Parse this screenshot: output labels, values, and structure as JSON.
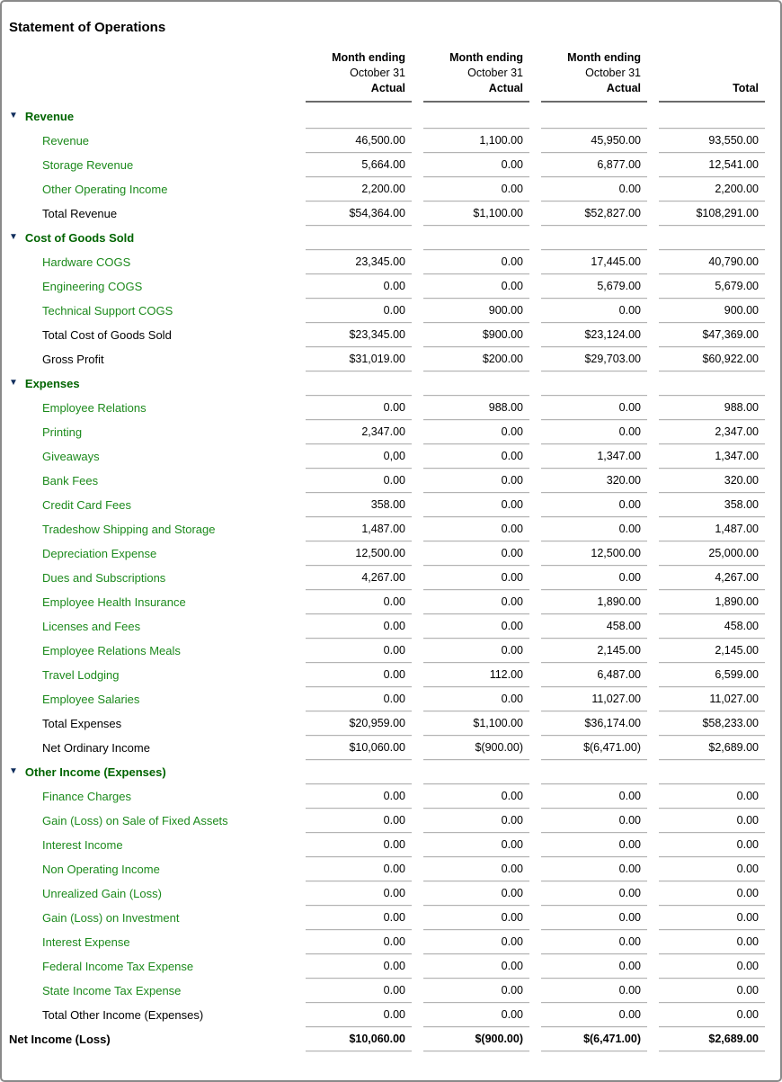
{
  "title": "Statement of Operations",
  "icons": {
    "collapse": "▼"
  },
  "colors": {
    "section_header_green": "#006400",
    "account_link_green": "#1c8a1c",
    "collapse_triangle_navy": "#0f2d5c",
    "cell_underline_gray": "#b3b3b3",
    "header_underline_gray": "#6b6b6b",
    "panel_border_gray": "#8a8a8a"
  },
  "columns": [
    {
      "period": "Month ending",
      "date": "October 31",
      "basis": "Actual"
    },
    {
      "period": "Month ending",
      "date": "October 31",
      "basis": "Actual"
    },
    {
      "period": "Month ending",
      "date": "October 31",
      "basis": "Actual"
    },
    {
      "period": "",
      "date": "",
      "basis": "Total"
    }
  ],
  "rows": [
    {
      "type": "section",
      "label": "Revenue"
    },
    {
      "type": "item",
      "label": "Revenue",
      "values": [
        "46,500.00",
        "1,100.00",
        "45,950.00",
        "93,550.00"
      ]
    },
    {
      "type": "item",
      "label": "Storage Revenue",
      "values": [
        "5,664.00",
        "0.00",
        "6,877.00",
        "12,541.00"
      ]
    },
    {
      "type": "item",
      "label": "Other Operating Income",
      "values": [
        "2,200.00",
        "0.00",
        "0.00",
        "2,200.00"
      ]
    },
    {
      "type": "total",
      "label": "Total Revenue",
      "values": [
        "$54,364.00",
        "$1,100.00",
        "$52,827.00",
        "$108,291.00"
      ]
    },
    {
      "type": "section",
      "label": "Cost of Goods Sold"
    },
    {
      "type": "item",
      "label": "Hardware COGS",
      "values": [
        "23,345.00",
        "0.00",
        "17,445.00",
        "40,790.00"
      ]
    },
    {
      "type": "item",
      "label": "Engineering COGS",
      "values": [
        "0.00",
        "0.00",
        "5,679.00",
        "5,679.00"
      ]
    },
    {
      "type": "item",
      "label": "Technical Support COGS",
      "values": [
        "0.00",
        "900.00",
        "0.00",
        "900.00"
      ]
    },
    {
      "type": "total",
      "label": "Total Cost of Goods Sold",
      "values": [
        "$23,345.00",
        "$900.00",
        "$23,124.00",
        "$47,369.00"
      ]
    },
    {
      "type": "total",
      "label": "Gross Profit",
      "values": [
        "$31,019.00",
        "$200.00",
        "$29,703.00",
        "$60,922.00"
      ]
    },
    {
      "type": "section",
      "label": "Expenses"
    },
    {
      "type": "item",
      "label": "Employee Relations",
      "values": [
        "0.00",
        "988.00",
        "0.00",
        "988.00"
      ]
    },
    {
      "type": "item",
      "label": "Printing",
      "values": [
        "2,347.00",
        "0.00",
        "0.00",
        "2,347.00"
      ]
    },
    {
      "type": "item",
      "label": "Giveaways",
      "values": [
        "0,00",
        "0.00",
        "1,347.00",
        "1,347.00"
      ]
    },
    {
      "type": "item",
      "label": "Bank Fees",
      "values": [
        "0.00",
        "0.00",
        "320.00",
        "320.00"
      ]
    },
    {
      "type": "item",
      "label": "Credit Card Fees",
      "values": [
        "358.00",
        "0.00",
        "0.00",
        "358.00"
      ]
    },
    {
      "type": "item",
      "label": "Tradeshow Shipping and Storage",
      "values": [
        "1,487.00",
        "0.00",
        "0.00",
        "1,487.00"
      ]
    },
    {
      "type": "item",
      "label": "Depreciation Expense",
      "values": [
        "12,500.00",
        "0.00",
        "12,500.00",
        "25,000.00"
      ]
    },
    {
      "type": "item",
      "label": "Dues and Subscriptions",
      "values": [
        "4,267.00",
        "0.00",
        "0.00",
        "4,267.00"
      ]
    },
    {
      "type": "item",
      "label": "Employee Health Insurance",
      "values": [
        "0.00",
        "0.00",
        "1,890.00",
        "1,890.00"
      ]
    },
    {
      "type": "item",
      "label": "Licenses and Fees",
      "values": [
        "0.00",
        "0.00",
        "458.00",
        "458.00"
      ]
    },
    {
      "type": "item",
      "label": "Employee Relations Meals",
      "values": [
        "0.00",
        "0.00",
        "2,145.00",
        "2,145.00"
      ]
    },
    {
      "type": "item",
      "label": "Travel Lodging",
      "values": [
        "0.00",
        "112.00",
        "6,487.00",
        "6,599.00"
      ]
    },
    {
      "type": "item",
      "label": "Employee Salaries",
      "values": [
        "0.00",
        "0.00",
        "11,027.00",
        "11,027.00"
      ]
    },
    {
      "type": "total",
      "label": "Total Expenses",
      "values": [
        "$20,959.00",
        "$1,100.00",
        "$36,174.00",
        "$58,233.00"
      ]
    },
    {
      "type": "total",
      "label": "Net Ordinary Income",
      "values": [
        "$10,060.00",
        "$(900.00)",
        "$(6,471.00)",
        "$2,689.00"
      ]
    },
    {
      "type": "section",
      "label": "Other Income (Expenses)"
    },
    {
      "type": "item",
      "label": "Finance Charges",
      "values": [
        "0.00",
        "0.00",
        "0.00",
        "0.00"
      ]
    },
    {
      "type": "item",
      "label": "Gain (Loss) on Sale of Fixed Assets",
      "values": [
        "0.00",
        "0.00",
        "0.00",
        "0.00"
      ]
    },
    {
      "type": "item",
      "label": "Interest Income",
      "values": [
        "0.00",
        "0.00",
        "0.00",
        "0.00"
      ]
    },
    {
      "type": "item",
      "label": "Non Operating Income",
      "values": [
        "0.00",
        "0.00",
        "0.00",
        "0.00"
      ]
    },
    {
      "type": "item",
      "label": "Unrealized Gain (Loss)",
      "values": [
        "0.00",
        "0.00",
        "0.00",
        "0.00"
      ]
    },
    {
      "type": "item",
      "label": "Gain (Loss) on Investment",
      "values": [
        "0.00",
        "0.00",
        "0.00",
        "0.00"
      ]
    },
    {
      "type": "item",
      "label": "Interest Expense",
      "values": [
        "0.00",
        "0.00",
        "0.00",
        "0.00"
      ]
    },
    {
      "type": "item",
      "label": "Federal Income Tax Expense",
      "values": [
        "0.00",
        "0.00",
        "0.00",
        "0.00"
      ]
    },
    {
      "type": "item",
      "label": "State Income Tax Expense",
      "values": [
        "0.00",
        "0.00",
        "0.00",
        "0.00"
      ]
    },
    {
      "type": "total",
      "label": "Total Other Income (Expenses)",
      "values": [
        "0.00",
        "0.00",
        "0.00",
        "0.00"
      ]
    },
    {
      "type": "net",
      "label": "Net Income (Loss)",
      "values": [
        "$10,060.00",
        "$(900.00)",
        "$(6,471.00)",
        "$2,689.00"
      ]
    }
  ]
}
